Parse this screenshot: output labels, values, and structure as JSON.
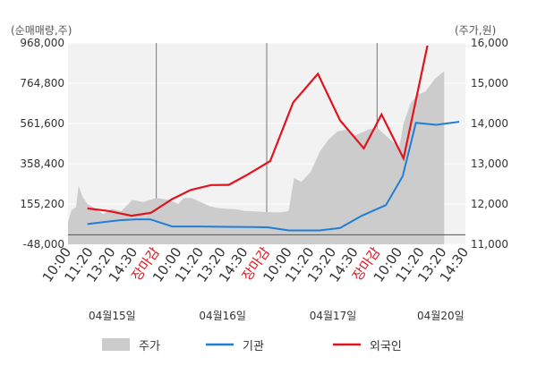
{
  "chart_data": {
    "type": "line",
    "left_axis_unit": "(순매매량,주)",
    "right_axis_unit": "(주가,원)",
    "left_ticks": [
      "968,000",
      "764,800",
      "561,600",
      "358,400",
      "155,200",
      "-48,000"
    ],
    "left_tick_values": [
      968000,
      764800,
      561600,
      358400,
      155200,
      -48000
    ],
    "right_ticks": [
      "16,000",
      "15,000",
      "14,000",
      "13,000",
      "12,000",
      "11,000"
    ],
    "right_tick_values": [
      16000,
      15000,
      14000,
      13000,
      12000,
      11000
    ],
    "left_ylim": [
      -48000,
      968000
    ],
    "right_ylim": [
      11000,
      16000
    ],
    "x_labels": [
      "10:00",
      "11:20",
      "13:20",
      "14:30",
      "장마감",
      "10:00",
      "11:20",
      "13:20",
      "14:30",
      "장마감",
      "10:00",
      "11:20",
      "13:20",
      "14:30",
      "장마감",
      "10:00",
      "11:20",
      "13:20",
      "14:30"
    ],
    "close_label": "장마감",
    "dates": [
      "04월15일",
      "04월16일",
      "04월17일",
      "04월20일"
    ],
    "legend": [
      "주가",
      "기관",
      "외국인"
    ],
    "colors": {
      "price": "#cccccc",
      "institution": "#1f7fd6",
      "foreign": "#e0141e",
      "plot_bg": "#f2f2f2",
      "close_label": "#e0141e"
    },
    "price_points": [
      [
        0,
        11550
      ],
      [
        0.4,
        11850
      ],
      [
        0.9,
        11920
      ],
      [
        1.2,
        12450
      ],
      [
        1.6,
        12200
      ],
      [
        2.2,
        12000
      ],
      [
        3,
        11900
      ],
      [
        4,
        11750
      ],
      [
        5,
        11880
      ],
      [
        6,
        11820
      ],
      [
        7.3,
        12100
      ],
      [
        8.5,
        12050
      ],
      [
        10,
        12150
      ],
      [
        11.5,
        12100
      ],
      [
        12.5,
        12000
      ],
      [
        13.1,
        12150
      ],
      [
        14,
        12150
      ],
      [
        15,
        12050
      ],
      [
        16,
        11950
      ],
      [
        17,
        11900
      ],
      [
        18,
        11880
      ],
      [
        19,
        11870
      ],
      [
        20,
        11830
      ],
      [
        21,
        11820
      ],
      [
        22.5,
        11800
      ],
      [
        24,
        11790
      ],
      [
        24.9,
        11820
      ],
      [
        25.0,
        11850
      ],
      [
        25.6,
        12650
      ],
      [
        26.4,
        12550
      ],
      [
        27.5,
        12800
      ],
      [
        28.5,
        13300
      ],
      [
        29.5,
        13600
      ],
      [
        30.5,
        13800
      ],
      [
        31.5,
        13850
      ],
      [
        32.5,
        13700
      ],
      [
        34,
        13850
      ],
      [
        35,
        13900
      ],
      [
        36.5,
        13600
      ],
      [
        37.5,
        13400
      ],
      [
        38.0,
        14000
      ],
      [
        38.8,
        14500
      ],
      [
        39.5,
        14700
      ],
      [
        40.5,
        14800
      ],
      [
        41.5,
        15100
      ],
      [
        42.6,
        15300
      ]
    ],
    "series": [
      {
        "name": "기관",
        "points": [
          [
            2.2,
            54000
          ],
          [
            4,
            64000
          ],
          [
            6,
            74000
          ],
          [
            7.7,
            78000
          ],
          [
            9.3,
            78000
          ],
          [
            11.8,
            42000
          ],
          [
            15,
            42000
          ],
          [
            18.1,
            40000
          ],
          [
            21,
            39000
          ],
          [
            22.6,
            38000
          ],
          [
            25,
            22000
          ],
          [
            28.5,
            22000
          ],
          [
            30.8,
            34000
          ],
          [
            33.3,
            97000
          ],
          [
            36,
            150000
          ],
          [
            37.9,
            295000
          ],
          [
            39.4,
            565000
          ],
          [
            41.7,
            555000
          ],
          [
            44.3,
            570000
          ]
        ]
      },
      {
        "name": "외국인",
        "points": [
          [
            2.2,
            133000
          ],
          [
            4.6,
            120000
          ],
          [
            7.2,
            96000
          ],
          [
            9.4,
            111000
          ],
          [
            11.8,
            180000
          ],
          [
            13.9,
            226000
          ],
          [
            16.2,
            251000
          ],
          [
            18.2,
            252000
          ],
          [
            20.2,
            300000
          ],
          [
            22.9,
            372000
          ],
          [
            25.5,
            668000
          ],
          [
            28.3,
            812000
          ],
          [
            30.8,
            578000
          ],
          [
            33.5,
            436000
          ],
          [
            35.5,
            607000
          ],
          [
            38.0,
            385000
          ],
          [
            40.7,
            955000
          ]
        ]
      }
    ]
  }
}
